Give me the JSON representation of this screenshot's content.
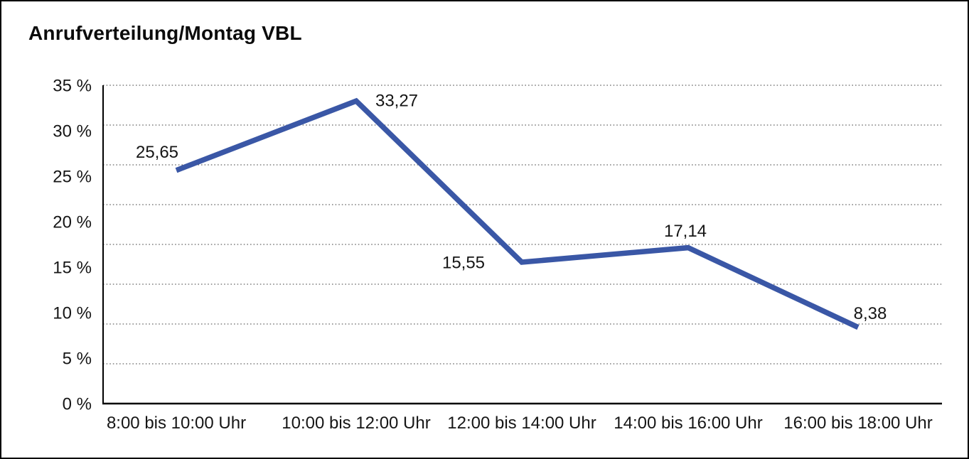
{
  "chart_data": {
    "type": "line",
    "title": "Anrufverteilung/Montag VBL",
    "categories": [
      "8:00 bis 10:00 Uhr",
      "10:00 bis 12:00 Uhr",
      "12:00 bis 14:00 Uhr",
      "14:00 bis 16:00 Uhr",
      "16:00 bis 18:00 Uhr"
    ],
    "values": [
      25.65,
      33.27,
      15.55,
      17.14,
      8.38
    ],
    "value_labels": [
      "25,65",
      "33,27",
      "15,55",
      "17,14",
      "8,38"
    ],
    "xlabel": "",
    "ylabel": "",
    "ylim": [
      0,
      35
    ],
    "y_tick_values": [
      35,
      30,
      25,
      20,
      15,
      10,
      5,
      0
    ],
    "y_tick_labels": [
      "35 %",
      "30 %",
      "25 %",
      "20 %",
      "15 %",
      "10 %",
      "5 %",
      "0 %"
    ],
    "grid": "horizontal-dotted",
    "grid_divisions": 8,
    "legend_position": "none",
    "series_color": "#3A57A6",
    "axis_color": "#000000",
    "grid_color": "#666666",
    "text_color": "#161616",
    "background_color": "#FFFFFF"
  }
}
